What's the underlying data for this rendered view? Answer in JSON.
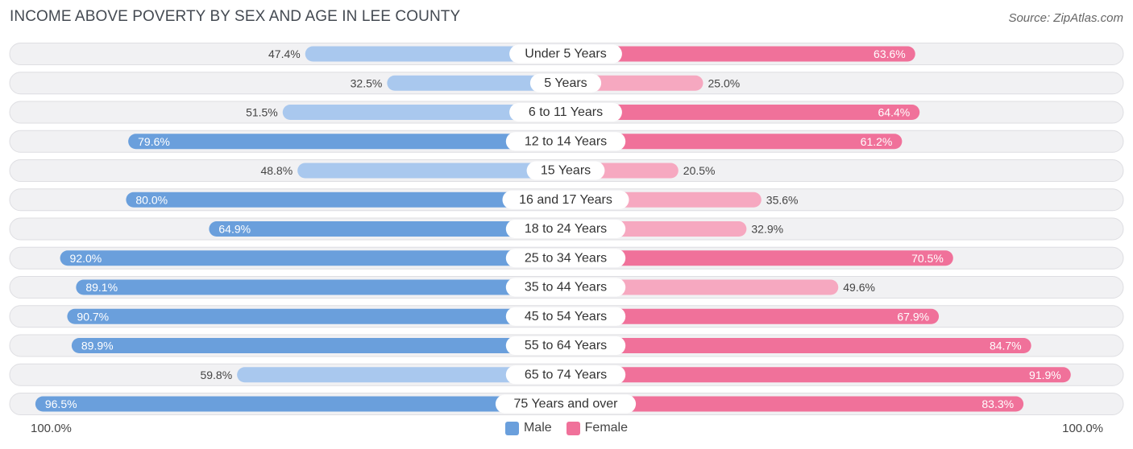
{
  "title": "INCOME ABOVE POVERTY BY SEX AND AGE IN LEE COUNTY",
  "source": "Source: ZipAtlas.com",
  "colors": {
    "male_dark": "#6a9fdc",
    "male_light": "#a9c8ee",
    "female_dark": "#f0719a",
    "female_light": "#f6a8c0",
    "track": "#f1f1f3",
    "track_border": "#dedee2"
  },
  "chart_data": {
    "type": "bar",
    "orientation": "horizontal-diverging",
    "title": "INCOME ABOVE POVERTY BY SEX AND AGE IN LEE COUNTY",
    "categories": [
      "Under 5 Years",
      "5 Years",
      "6 to 11 Years",
      "12 to 14 Years",
      "15 Years",
      "16 and 17 Years",
      "18 to 24 Years",
      "25 to 34 Years",
      "35 to 44 Years",
      "45 to 54 Years",
      "55 to 64 Years",
      "65 to 74 Years",
      "75 Years and over"
    ],
    "series": [
      {
        "name": "Male",
        "values": [
          47.4,
          32.5,
          51.5,
          79.6,
          48.8,
          80.0,
          64.9,
          92.0,
          89.1,
          90.7,
          89.9,
          59.8,
          96.5
        ]
      },
      {
        "name": "Female",
        "values": [
          63.6,
          25.0,
          64.4,
          61.2,
          20.5,
          35.6,
          32.9,
          70.5,
          49.6,
          67.9,
          84.7,
          91.9,
          83.3
        ]
      }
    ],
    "value_labels": {
      "male": [
        "47.4%",
        "32.5%",
        "51.5%",
        "79.6%",
        "48.8%",
        "80.0%",
        "64.9%",
        "92.0%",
        "89.1%",
        "90.7%",
        "89.9%",
        "59.8%",
        "96.5%"
      ],
      "female": [
        "63.6%",
        "25.0%",
        "64.4%",
        "61.2%",
        "20.5%",
        "35.6%",
        "32.9%",
        "70.5%",
        "49.6%",
        "67.9%",
        "84.7%",
        "91.9%",
        "83.3%"
      ]
    },
    "xlim": [
      0,
      100
    ],
    "axis_left_label": "100.0%",
    "axis_right_label": "100.0%",
    "legend": [
      "Male",
      "Female"
    ],
    "legend_position": "bottom-center"
  }
}
